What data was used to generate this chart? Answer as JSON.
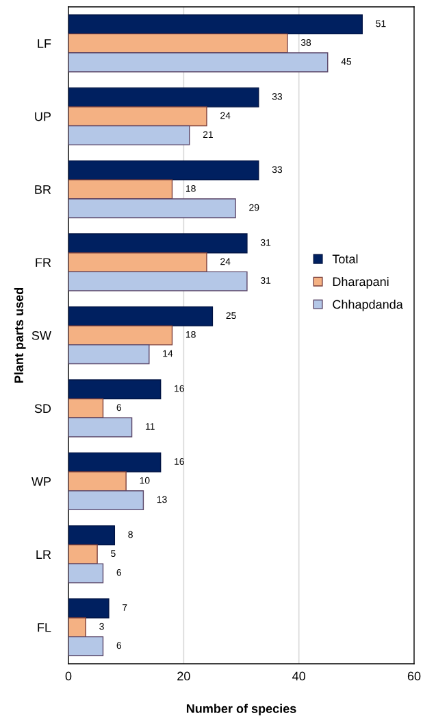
{
  "chart_data": {
    "type": "bar",
    "orientation": "horizontal",
    "xlabel": "Number of species",
    "ylabel": "Plant parts used",
    "categories": [
      "LF",
      "UP",
      "BR",
      "FR",
      "SW",
      "SD",
      "WP",
      "LR",
      "FL"
    ],
    "series": [
      {
        "name": "Total",
        "color": "#002060",
        "values": [
          51,
          33,
          33,
          31,
          25,
          16,
          16,
          8,
          7
        ]
      },
      {
        "name": "Dharapani",
        "color": "#f4b183",
        "values": [
          38,
          24,
          18,
          24,
          18,
          6,
          10,
          5,
          3
        ]
      },
      {
        "name": "Chhapdanda",
        "color": "#b4c7e7",
        "values": [
          45,
          21,
          29,
          31,
          14,
          11,
          13,
          6,
          6
        ]
      }
    ],
    "xlim": [
      0,
      60
    ],
    "xticks": [
      0,
      20,
      40,
      60
    ],
    "grid": "x",
    "legend": "right",
    "data_labels": true
  }
}
